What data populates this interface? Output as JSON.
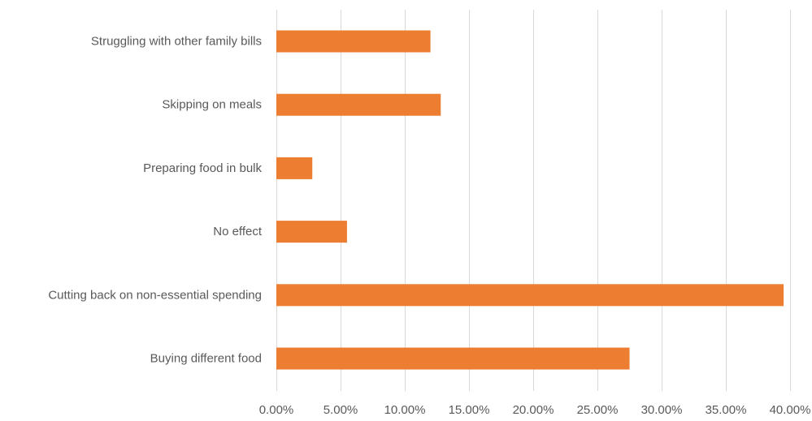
{
  "chart_data": {
    "type": "bar",
    "orientation": "horizontal",
    "categories": [
      "Struggling with other family bills",
      "Skipping on meals",
      "Preparing food in bulk",
      "No effect",
      "Cutting back on non-essential spending",
      "Buying different food"
    ],
    "values": [
      0.12,
      0.128,
      0.028,
      0.055,
      0.395,
      0.275
    ],
    "xlim": [
      0,
      0.4
    ],
    "xticks": [
      0,
      0.05,
      0.1,
      0.15,
      0.2,
      0.25,
      0.3,
      0.35,
      0.4
    ],
    "xtick_labels": [
      "0.00%",
      "5.00%",
      "10.00%",
      "15.00%",
      "20.00%",
      "25.00%",
      "30.00%",
      "35.00%",
      "40.00%"
    ],
    "grid": "vertical",
    "legend": "none",
    "bar_color": "#ED7D31"
  }
}
